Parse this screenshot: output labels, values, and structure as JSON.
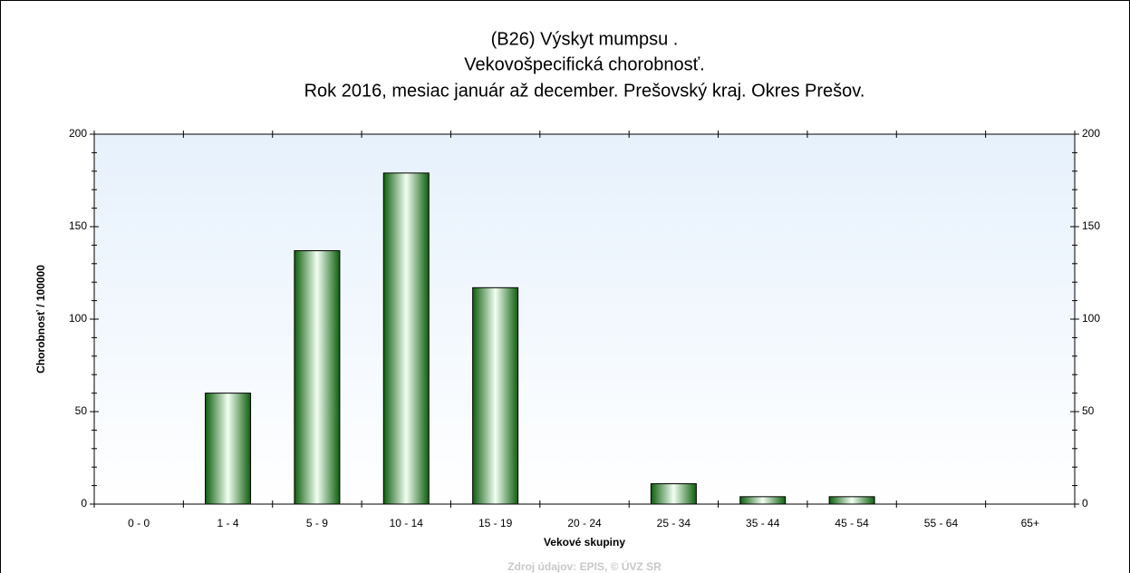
{
  "chart_data": {
    "type": "bar",
    "title": [
      "(B26) Výskyt mumpsu .",
      "Vekovošpecifická chorobnosť.",
      "Rok 2016, mesiac január až december. Prešovský kraj. Okres Prešov."
    ],
    "x_label": "Vekové skupiny",
    "y_label": "Chorobnosť / 100000",
    "source": "Zdroj údajov: EPIS, © ÚVZ SR",
    "categories": [
      "0 - 0",
      "1 - 4",
      "5 - 9",
      "10 - 14",
      "15 - 19",
      "20 - 24",
      "25 - 34",
      "35 - 44",
      "45 - 54",
      "55 - 64",
      "65+"
    ],
    "values": [
      0,
      60,
      137,
      179,
      117,
      0,
      11,
      4,
      4,
      0,
      0
    ],
    "color": "#1e7a1e",
    "ylim": [
      0,
      200
    ],
    "yticks": [
      0,
      50,
      100,
      150,
      200
    ],
    "y2lim": [
      0,
      200
    ],
    "y2ticks": [
      0,
      50,
      100,
      150,
      200
    ]
  }
}
